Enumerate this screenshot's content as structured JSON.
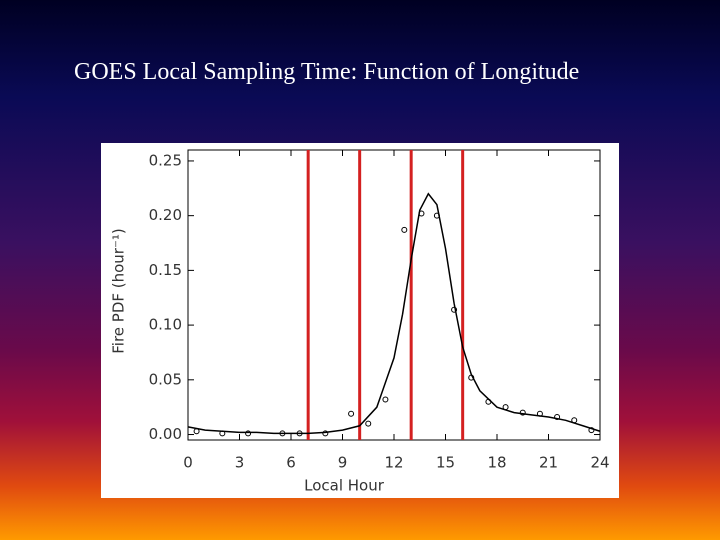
{
  "slide_title": "GOES Local Sampling Time: Function of Longitude",
  "chart_data": {
    "type": "line",
    "xlabel": "Local Hour",
    "ylabel": "Fire PDF (hour⁻¹)",
    "xlim": [
      0,
      24
    ],
    "ylim": [
      -0.005,
      0.26
    ],
    "xticks": [
      0,
      3,
      6,
      9,
      12,
      15,
      18,
      21,
      24
    ],
    "yticks": [
      {
        "value": 0,
        "label": "0.00"
      },
      {
        "value": 0.05,
        "label": "0.05"
      },
      {
        "value": 0.1,
        "label": "0.10"
      },
      {
        "value": 0.15,
        "label": "0.15"
      },
      {
        "value": 0.2,
        "label": "0.20"
      },
      {
        "value": 0.25,
        "label": "0.25"
      }
    ],
    "series": [
      {
        "style": "line",
        "color": "#000000",
        "x": [
          0,
          1,
          2,
          3,
          4,
          5,
          6,
          7,
          8,
          9,
          10,
          11,
          12,
          12.5,
          13,
          13.5,
          14,
          14.5,
          15,
          15.5,
          16,
          16.5,
          17,
          18,
          19,
          20,
          21,
          22,
          23,
          24
        ],
        "values": [
          0.007,
          0.004,
          0.003,
          0.002,
          0.002,
          0.001,
          0.001,
          0.001,
          0.002,
          0.004,
          0.008,
          0.025,
          0.07,
          0.11,
          0.16,
          0.205,
          0.22,
          0.21,
          0.17,
          0.12,
          0.08,
          0.055,
          0.04,
          0.025,
          0.02,
          0.018,
          0.016,
          0.013,
          0.008,
          0.003
        ]
      },
      {
        "style": "markers",
        "color": "#000000",
        "x": [
          0.5,
          2,
          3.5,
          5.5,
          6.5,
          8,
          9.5,
          10.5,
          11.5,
          12.6,
          13.6,
          14.5,
          15.5,
          16.5,
          17.5,
          18.5,
          19.5,
          20.5,
          21.5,
          22.5,
          23.5
        ],
        "values": [
          0.003,
          0.001,
          0.001,
          0.001,
          0.001,
          0.001,
          0.019,
          0.01,
          0.032,
          0.187,
          0.202,
          0.2,
          0.114,
          0.052,
          0.03,
          0.025,
          0.02,
          0.019,
          0.016,
          0.013,
          0.004
        ]
      }
    ],
    "vlines": {
      "color": "#d42020",
      "x": [
        7,
        10,
        13,
        16
      ]
    }
  }
}
